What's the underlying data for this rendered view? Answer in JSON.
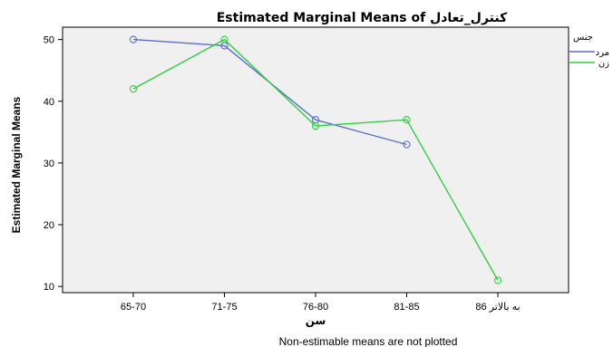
{
  "chart_data": {
    "type": "line",
    "title": "Estimated Marginal Means of کنترل_تعادل",
    "xlabel": "سن",
    "ylabel": "Estimated Marginal Means",
    "categories": [
      "65-70",
      "71-75",
      "76-80",
      "81-85",
      "86 به بالاتر"
    ],
    "yticks": [
      10,
      20,
      30,
      40,
      50
    ],
    "ylim": [
      9,
      52
    ],
    "grid": false,
    "legend": {
      "title": "جنس",
      "placement": "right"
    },
    "series": [
      {
        "name": "مرد",
        "color": "#5b6fcf",
        "values": [
          50,
          49,
          37,
          33,
          null
        ]
      },
      {
        "name": "زن",
        "color": "#2fcf3f",
        "values": [
          42,
          50,
          36,
          37,
          11
        ]
      }
    ],
    "footnote": "Non-estimable means are not plotted"
  }
}
